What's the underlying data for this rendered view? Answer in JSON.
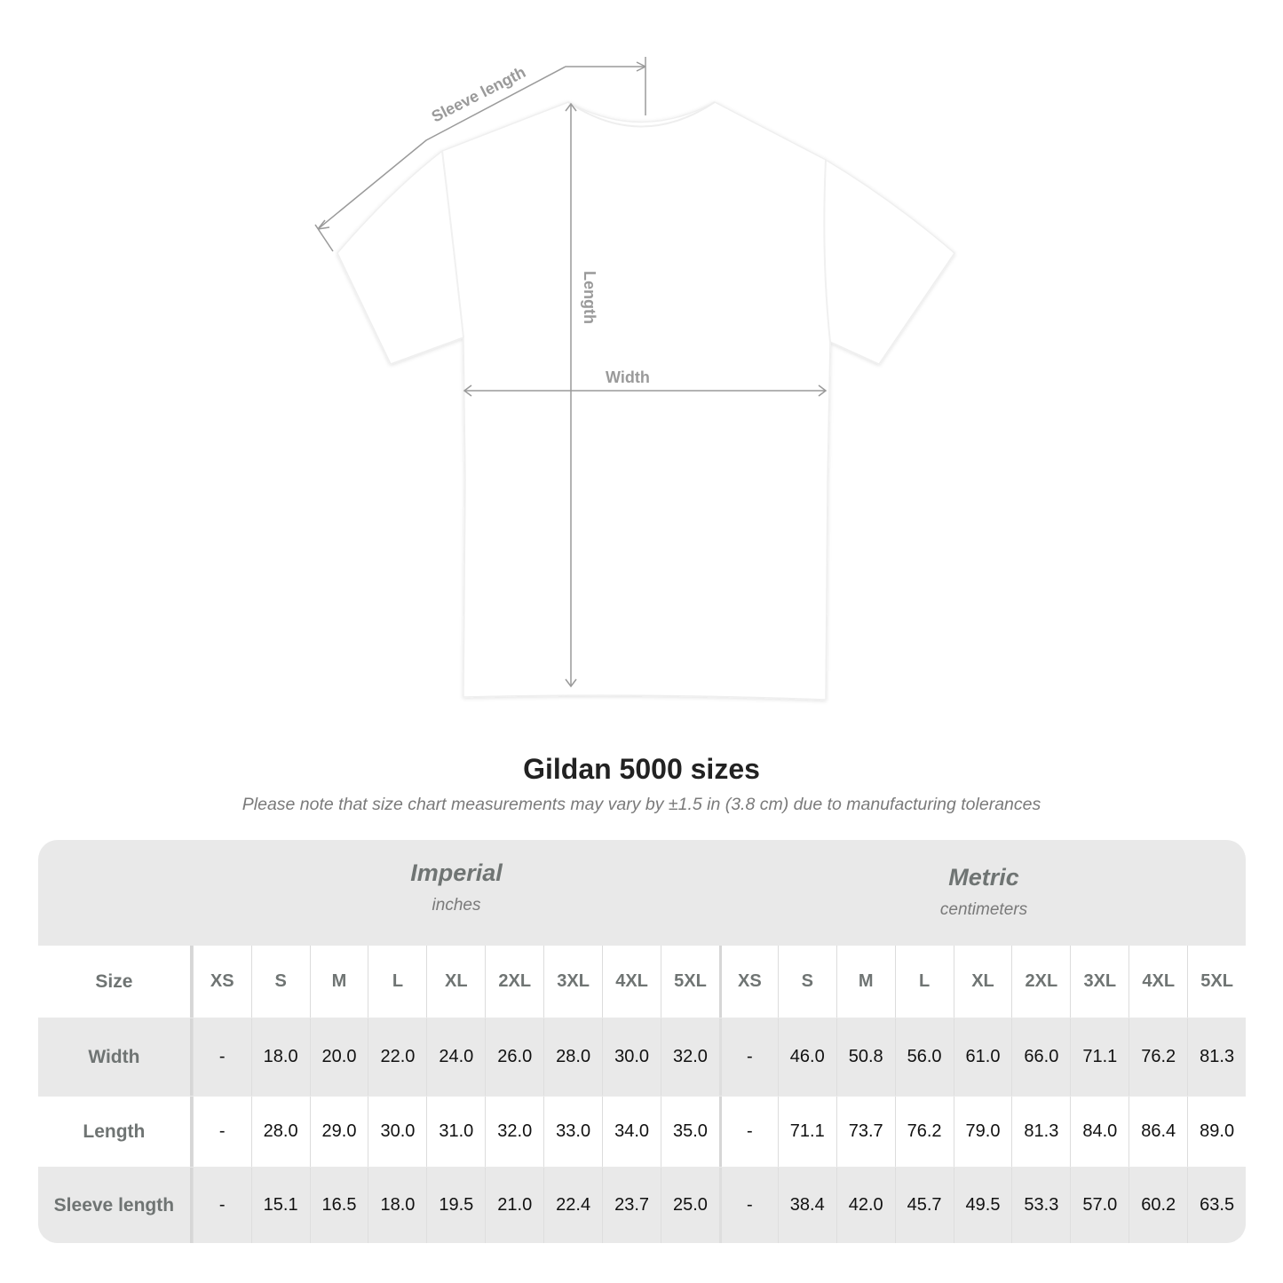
{
  "diagram": {
    "labels": {
      "sleeve": "Sleeve length",
      "length": "Length",
      "width": "Width"
    }
  },
  "title": "Gildan 5000 sizes",
  "subtitle": "Please note that size chart measurements may vary by ±1.5 in (3.8 cm) due to manufacturing tolerances",
  "table": {
    "imperial": {
      "label": "Imperial",
      "unit": "inches"
    },
    "metric": {
      "label": "Metric",
      "unit": "centimeters"
    },
    "size_label": "Size",
    "sizes": [
      "XS",
      "S",
      "M",
      "L",
      "XL",
      "2XL",
      "3XL",
      "4XL",
      "5XL"
    ],
    "rows": [
      {
        "label": "Width",
        "imperial": [
          "-",
          "18.0",
          "20.0",
          "22.0",
          "24.0",
          "26.0",
          "28.0",
          "30.0",
          "32.0"
        ],
        "metric": [
          "-",
          "46.0",
          "50.8",
          "56.0",
          "61.0",
          "66.0",
          "71.1",
          "76.2",
          "81.3"
        ]
      },
      {
        "label": "Length",
        "imperial": [
          "-",
          "28.0",
          "29.0",
          "30.0",
          "31.0",
          "32.0",
          "33.0",
          "34.0",
          "35.0"
        ],
        "metric": [
          "-",
          "71.1",
          "73.7",
          "76.2",
          "79.0",
          "81.3",
          "84.0",
          "86.4",
          "89.0"
        ]
      },
      {
        "label": "Sleeve length",
        "imperial": [
          "-",
          "15.1",
          "16.5",
          "18.0",
          "19.5",
          "21.0",
          "22.4",
          "23.7",
          "25.0"
        ],
        "metric": [
          "-",
          "38.4",
          "42.0",
          "45.7",
          "49.5",
          "53.3",
          "57.0",
          "60.2",
          "63.5"
        ]
      }
    ]
  },
  "colors": {
    "header_text": "#6f7473",
    "band": "#e9e9e9",
    "dimension_lines": "#9a9a9a"
  }
}
